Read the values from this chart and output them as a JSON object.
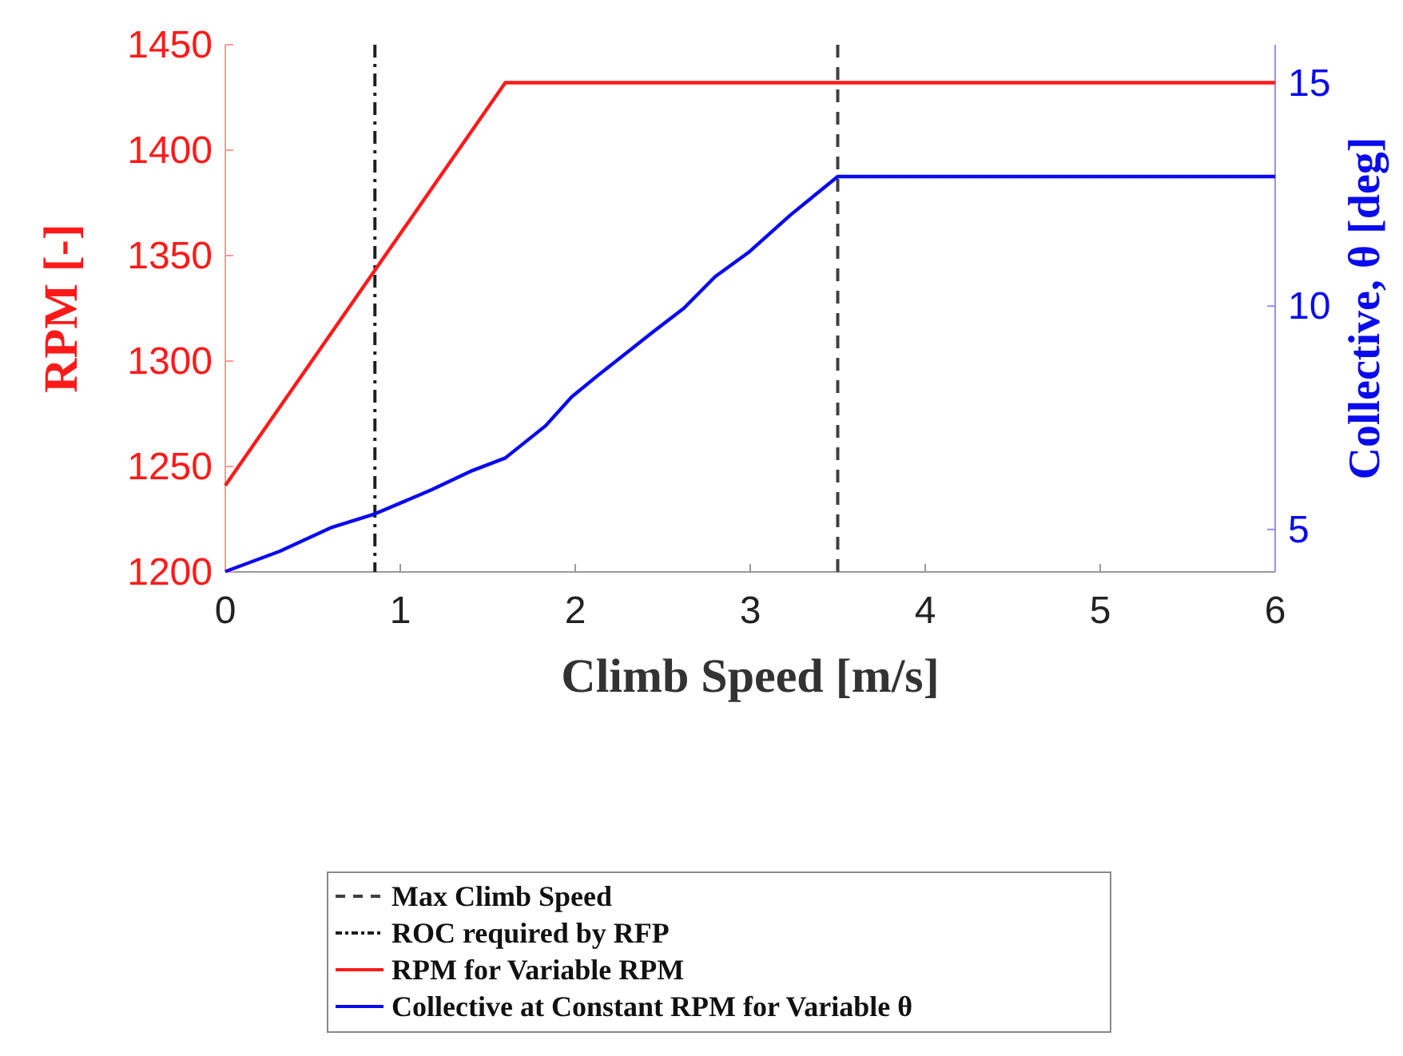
{
  "chart_data": {
    "type": "line",
    "xlabel": "Climb Speed [m/s]",
    "ylabel": "RPM [-]",
    "y2label": "Collective, θ  [deg]",
    "xlim": [
      0,
      6
    ],
    "xticks": [
      0,
      1,
      2,
      3,
      4,
      5,
      6
    ],
    "ylim": [
      1200,
      1450
    ],
    "yticks": [
      1200,
      1250,
      1300,
      1350,
      1400,
      1450
    ],
    "y2lim": [
      4.05,
      15.85
    ],
    "y2ticks": [
      5,
      10,
      15
    ],
    "legend": "bottom",
    "grid": false,
    "line_style": "solid",
    "ref_lines": [
      {
        "axis": "x",
        "value": 3.5,
        "label": "Max Climb Speed",
        "color": "#404040",
        "line_style": "dashed"
      },
      {
        "axis": "x",
        "value": 0.855,
        "label": "ROC required by RFP",
        "color": "#202020",
        "line_style": "dashdot"
      }
    ],
    "series": [
      {
        "name": "RPM for Variable RPM",
        "color": "#ff1a1a",
        "x": [
          0,
          1.6,
          6
        ],
        "values": [
          1241,
          1432,
          1432
        ]
      },
      {
        "name": "Collective at Constant RPM for Variable θ",
        "color": "#0a0aee",
        "axis": "y2",
        "x": [
          0,
          0.31,
          0.61,
          0.855,
          1.18,
          1.4,
          1.6,
          1.83,
          1.98,
          2.13,
          2.44,
          2.62,
          2.8,
          2.99,
          3.23,
          3.5,
          6
        ],
        "values": [
          4.06,
          4.51,
          5.05,
          5.35,
          5.89,
          6.3,
          6.6,
          7.32,
          7.97,
          8.45,
          9.41,
          9.95,
          10.66,
          11.2,
          12.04,
          12.9,
          12.9
        ]
      }
    ]
  }
}
